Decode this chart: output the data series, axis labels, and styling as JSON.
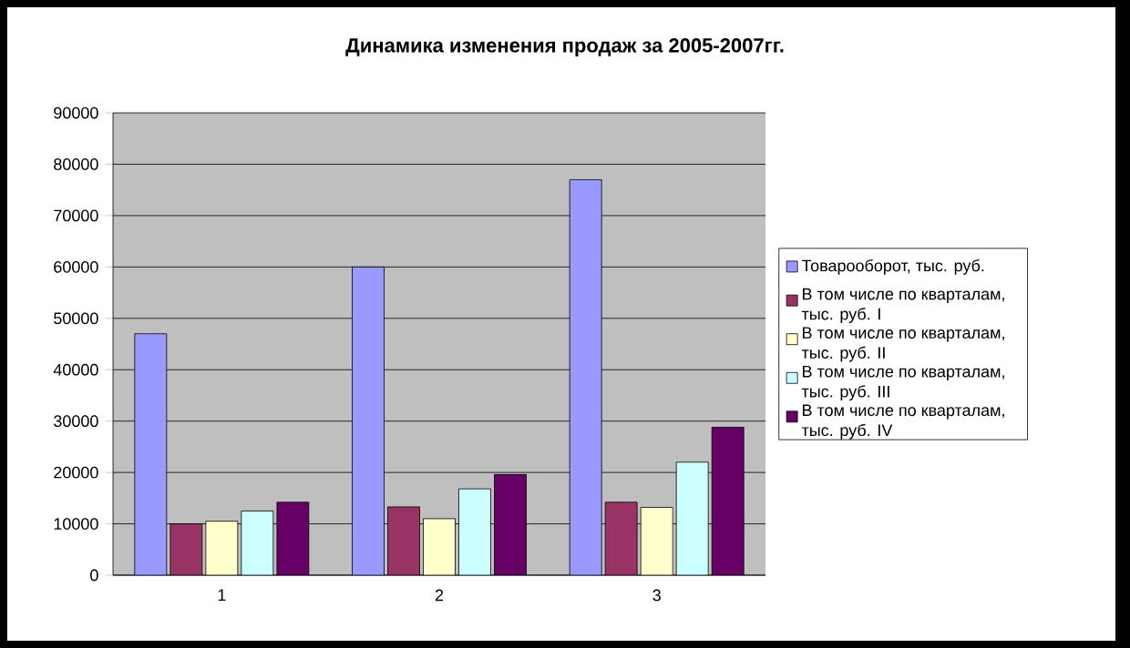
{
  "chart_data": {
    "type": "bar",
    "title": "Динамика изменения продаж за 2005-2007гг.",
    "categories": [
      "1",
      "2",
      "3"
    ],
    "series": [
      {
        "name": "Товарооборот, тыс. руб.",
        "color": "#9999ff",
        "values": [
          47000,
          60000,
          77000
        ]
      },
      {
        "name": "В том числе по кварталам, тыс. руб. I",
        "color": "#993366",
        "values": [
          10000,
          13300,
          14200
        ]
      },
      {
        "name": "В том числе по кварталам, тыс. руб. II",
        "color": "#ffffcc",
        "values": [
          10500,
          11000,
          13200
        ]
      },
      {
        "name": "В том числе по кварталам, тыс. руб. III",
        "color": "#ccffff",
        "values": [
          12500,
          16800,
          22000
        ]
      },
      {
        "name": "В том числе по кварталам, тыс. руб. IV",
        "color": "#660066",
        "values": [
          14200,
          19600,
          28800
        ]
      }
    ],
    "ylim": [
      0,
      90000
    ],
    "yticks": [
      0,
      10000,
      20000,
      30000,
      40000,
      50000,
      60000,
      70000,
      80000,
      90000
    ],
    "grid": "y",
    "legend": "right"
  }
}
